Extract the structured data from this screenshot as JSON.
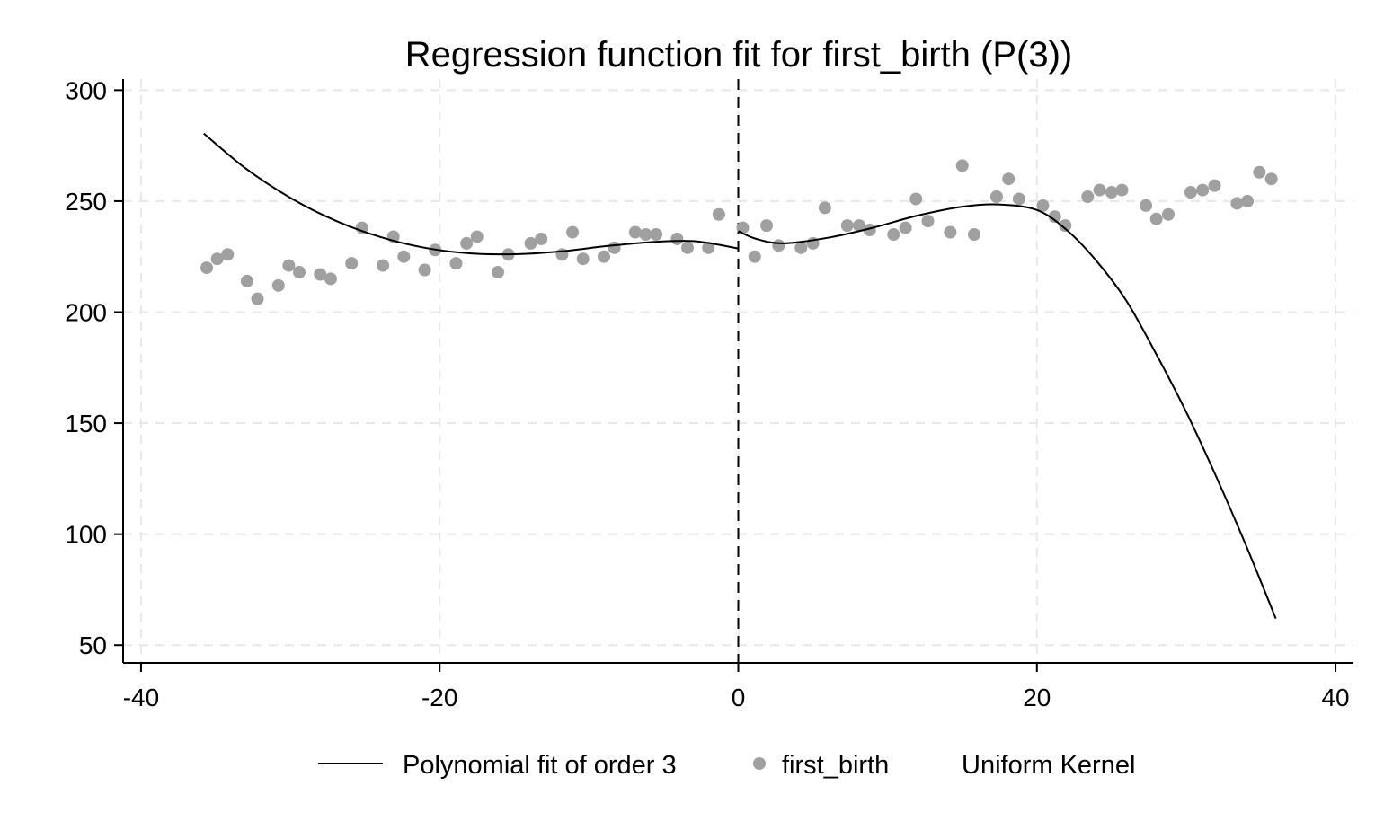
{
  "chart_data": {
    "type": "scatter",
    "title": "Regression function fit for first_birth (P(3))",
    "xlabel": "",
    "ylabel": "",
    "xlim": [
      -41.2,
      41.2
    ],
    "ylim": [
      42,
      305
    ],
    "xticks": [
      -40,
      -20,
      0,
      20,
      40
    ],
    "yticks": [
      50,
      100,
      150,
      200,
      250,
      300
    ],
    "xtick_labels": [
      "-40",
      "-20",
      "0",
      "20",
      "40"
    ],
    "ytick_labels": [
      "50",
      "100",
      "150",
      "200",
      "250",
      "300"
    ],
    "grid": true,
    "cutoff": 0,
    "legend_position": "bottom",
    "legend": {
      "fit_label": "Polynomial fit of order 3",
      "points_label": "first_birth",
      "kernel_label": "Uniform Kernel"
    },
    "colors": {
      "points": "#a0a0a0",
      "fit": "#000000",
      "grid": "#e8e8e8"
    },
    "series": [
      {
        "name": "first_birth",
        "type": "scatter",
        "x": [
          -35.6,
          -34.9,
          -34.2,
          -32.9,
          -32.2,
          -30.8,
          -30.1,
          -29.4,
          -28,
          -27.3,
          -25.9,
          -25.2,
          -23.8,
          -23.1,
          -22.4,
          -21,
          -20.3,
          -18.9,
          -18.2,
          -17.5,
          -16.1,
          -15.4,
          -13.9,
          -13.2,
          -11.8,
          -11.1,
          -10.4,
          -9,
          -8.3,
          -6.9,
          -6.2,
          -5.5,
          -4.1,
          -3.4,
          -2,
          -1.3,
          0.3,
          1.1,
          1.9,
          2.7,
          4.2,
          5,
          5.8,
          7.3,
          8.1,
          8.8,
          10.4,
          11.2,
          11.9,
          12.7,
          14.2,
          15,
          15.8,
          17.3,
          18.1,
          18.8,
          20.4,
          21.2,
          21.9,
          23.4,
          24.2,
          25,
          25.7,
          27.3,
          28,
          28.8,
          30.3,
          31.1,
          31.9,
          33.4,
          34.1,
          34.9,
          35.7
        ],
        "y": [
          220,
          224,
          226,
          214,
          206,
          212,
          221,
          218,
          217,
          215,
          222,
          238,
          221,
          234,
          225,
          219,
          228,
          222,
          231,
          234,
          218,
          226,
          231,
          233,
          226,
          236,
          224,
          225,
          229,
          236,
          235,
          235,
          233,
          229,
          229,
          244,
          238,
          225,
          239,
          230,
          229,
          231,
          247,
          239,
          239,
          237,
          235,
          238,
          251,
          241,
          236,
          266,
          235,
          252,
          260,
          251,
          248,
          243,
          239,
          252,
          255,
          254,
          255,
          248,
          242,
          244,
          254,
          255,
          257,
          249,
          250,
          263,
          260
        ]
      },
      {
        "name": "Polynomial fit of order 3",
        "type": "line",
        "segments": [
          {
            "x": [
              -35.8,
              -33,
              -30,
              -27,
              -24,
              -21,
              -18,
              -15,
              -12,
              -9,
              -6,
              -3,
              0
            ],
            "y": [
              280.5,
              264.8,
              251.5,
              241.3,
              233.9,
              229.0,
              226.5,
              226.1,
              227.3,
              229.6,
              231.5,
              232.0,
              228.7
            ]
          },
          {
            "x": [
              0,
              1.2,
              3,
              6,
              9,
              12,
              15,
              17.4,
              20,
              22,
              24,
              26,
              28,
              30,
              32,
              34,
              36
            ],
            "y": [
              236.5,
              233,
              231,
              233.5,
              238,
              243.5,
              247.5,
              248.5,
              246,
              237,
              223,
              205,
              181,
              155,
              126,
              95,
              62
            ]
          }
        ]
      }
    ]
  }
}
